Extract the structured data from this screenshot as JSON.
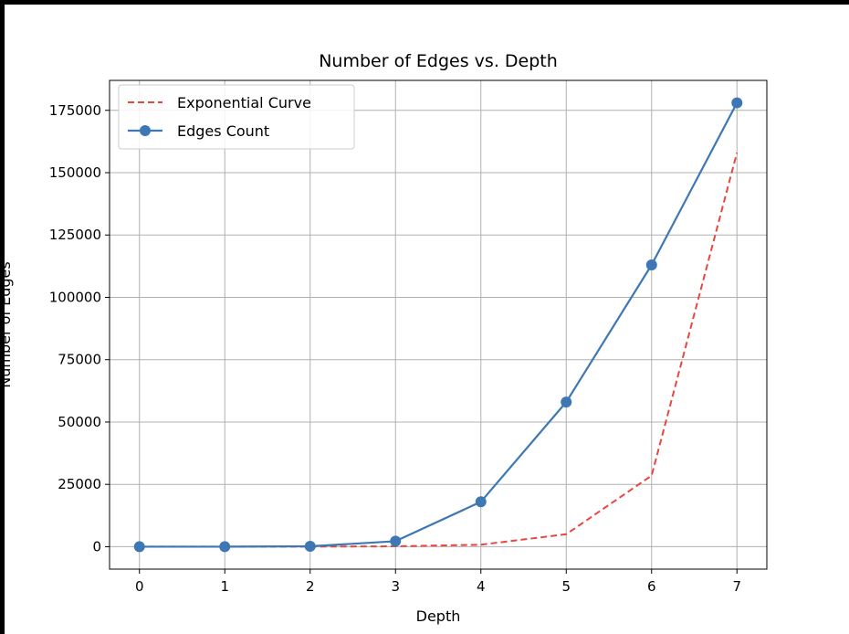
{
  "chart_data": {
    "type": "line",
    "title": "Number of Edges vs. Depth",
    "xlabel": "Depth",
    "ylabel": "Number of Edges",
    "x": [
      0,
      1,
      2,
      3,
      4,
      5,
      6,
      7
    ],
    "xlim": [
      -0.35,
      7.35
    ],
    "ylim": [
      -9000,
      187000
    ],
    "xticks": [
      "0",
      "1",
      "2",
      "3",
      "4",
      "5",
      "6",
      "7"
    ],
    "yticks": [
      0,
      25000,
      50000,
      75000,
      100000,
      125000,
      150000,
      175000
    ],
    "ytick_labels": [
      "0",
      "25000",
      "50000",
      "75000",
      "100000",
      "125000",
      "150000",
      "175000"
    ],
    "grid": true,
    "legend_position": "top-left",
    "series": [
      {
        "name": "Exponential Curve",
        "style": "dashed",
        "marker": "none",
        "color": "#e8473f",
        "values": [
          1,
          5,
          30,
          150,
          800,
          5000,
          28500,
          158000
        ]
      },
      {
        "name": "Edges Count",
        "style": "solid",
        "marker": "circle",
        "color": "#3d78b5",
        "values": [
          0,
          0,
          150,
          2200,
          18000,
          58000,
          113000,
          178000
        ]
      }
    ]
  }
}
